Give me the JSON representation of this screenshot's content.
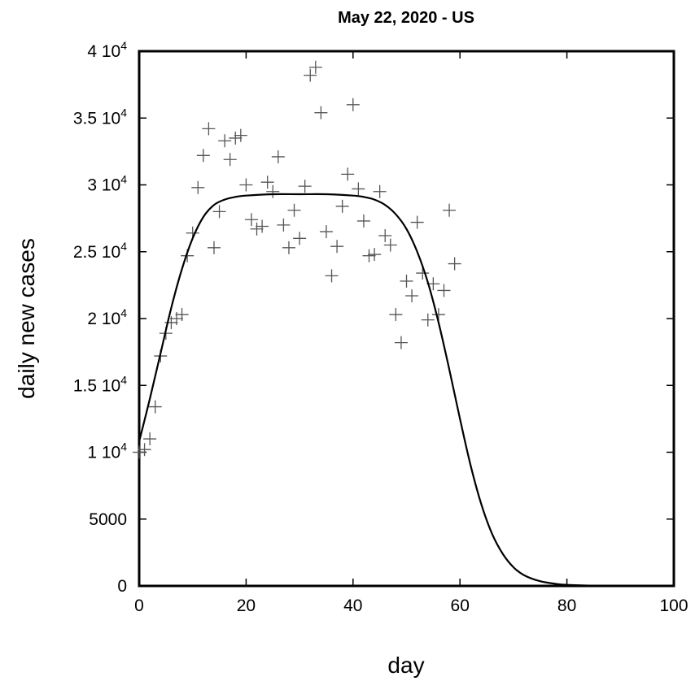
{
  "chart_data": {
    "type": "scatter",
    "title": "May 22, 2020 - US",
    "xlabel": "day",
    "ylabel": "daily new cases",
    "xlim": [
      0,
      100
    ],
    "ylim": [
      0,
      40000
    ],
    "x_ticks": [
      {
        "value": 0,
        "label": "0"
      },
      {
        "value": 20,
        "label": "20"
      },
      {
        "value": 40,
        "label": "40"
      },
      {
        "value": 60,
        "label": "60"
      },
      {
        "value": 80,
        "label": "80"
      },
      {
        "value": 100,
        "label": "100"
      }
    ],
    "y_ticks": [
      {
        "value": 0,
        "label": "0",
        "exp": ""
      },
      {
        "value": 5000,
        "label": "5000",
        "exp": ""
      },
      {
        "value": 10000,
        "label": "1 10",
        "exp": "4"
      },
      {
        "value": 15000,
        "label": "1.5 10",
        "exp": "4"
      },
      {
        "value": 20000,
        "label": "2 10",
        "exp": "4"
      },
      {
        "value": 25000,
        "label": "2.5 10",
        "exp": "4"
      },
      {
        "value": 30000,
        "label": "3 10",
        "exp": "4"
      },
      {
        "value": 35000,
        "label": "3.5 10",
        "exp": "4"
      },
      {
        "value": 40000,
        "label": "4 10",
        "exp": "4"
      }
    ],
    "grid": false,
    "series": [
      {
        "type": "scatter",
        "marker": "plus",
        "color": "#555555",
        "points": [
          [
            0,
            10000
          ],
          [
            1,
            10200
          ],
          [
            2,
            11000
          ],
          [
            3,
            13400
          ],
          [
            4,
            17200
          ],
          [
            5,
            18900
          ],
          [
            6,
            19700
          ],
          [
            7,
            20000
          ],
          [
            8,
            20300
          ],
          [
            9,
            24700
          ],
          [
            10,
            26400
          ],
          [
            11,
            29800
          ],
          [
            12,
            32200
          ],
          [
            13,
            34200
          ],
          [
            14,
            25300
          ],
          [
            15,
            28000
          ],
          [
            16,
            33300
          ],
          [
            17,
            31900
          ],
          [
            18,
            33500
          ],
          [
            19,
            33700
          ],
          [
            20,
            30000
          ],
          [
            21,
            27400
          ],
          [
            22,
            26700
          ],
          [
            23,
            26900
          ],
          [
            24,
            30200
          ],
          [
            25,
            29500
          ],
          [
            26,
            32100
          ],
          [
            27,
            27000
          ],
          [
            28,
            25300
          ],
          [
            29,
            28100
          ],
          [
            30,
            26000
          ],
          [
            31,
            29900
          ],
          [
            32,
            38200
          ],
          [
            33,
            38800
          ],
          [
            34,
            35400
          ],
          [
            35,
            26500
          ],
          [
            36,
            23200
          ],
          [
            37,
            25400
          ],
          [
            38,
            28400
          ],
          [
            39,
            30800
          ],
          [
            40,
            36000
          ],
          [
            41,
            29700
          ],
          [
            42,
            27300
          ],
          [
            43,
            24700
          ],
          [
            44,
            24800
          ],
          [
            45,
            29500
          ],
          [
            46,
            26200
          ],
          [
            47,
            25500
          ],
          [
            48,
            20300
          ],
          [
            49,
            18200
          ],
          [
            50,
            22800
          ],
          [
            51,
            21700
          ],
          [
            52,
            27200
          ],
          [
            53,
            23400
          ],
          [
            54,
            19900
          ],
          [
            55,
            22600
          ],
          [
            56,
            20300
          ],
          [
            57,
            22100
          ],
          [
            58,
            28100
          ],
          [
            59,
            24100
          ]
        ]
      },
      {
        "type": "line",
        "color": "#000000",
        "points": [
          [
            0,
            10800
          ],
          [
            2,
            14000
          ],
          [
            4,
            17400
          ],
          [
            6,
            20800
          ],
          [
            8,
            23700
          ],
          [
            10,
            26000
          ],
          [
            12,
            27600
          ],
          [
            14,
            28500
          ],
          [
            16,
            28900
          ],
          [
            18,
            29100
          ],
          [
            20,
            29200
          ],
          [
            25,
            29300
          ],
          [
            30,
            29300
          ],
          [
            35,
            29300
          ],
          [
            40,
            29200
          ],
          [
            42,
            29100
          ],
          [
            44,
            28900
          ],
          [
            46,
            28500
          ],
          [
            48,
            27800
          ],
          [
            50,
            26700
          ],
          [
            52,
            25000
          ],
          [
            54,
            22700
          ],
          [
            56,
            19700
          ],
          [
            58,
            16200
          ],
          [
            60,
            12500
          ],
          [
            62,
            9000
          ],
          [
            64,
            6100
          ],
          [
            66,
            3900
          ],
          [
            68,
            2400
          ],
          [
            70,
            1400
          ],
          [
            72,
            800
          ],
          [
            75,
            350
          ],
          [
            78,
            150
          ],
          [
            80,
            80
          ],
          [
            85,
            20
          ],
          [
            90,
            0
          ],
          [
            100,
            0
          ]
        ]
      }
    ]
  }
}
